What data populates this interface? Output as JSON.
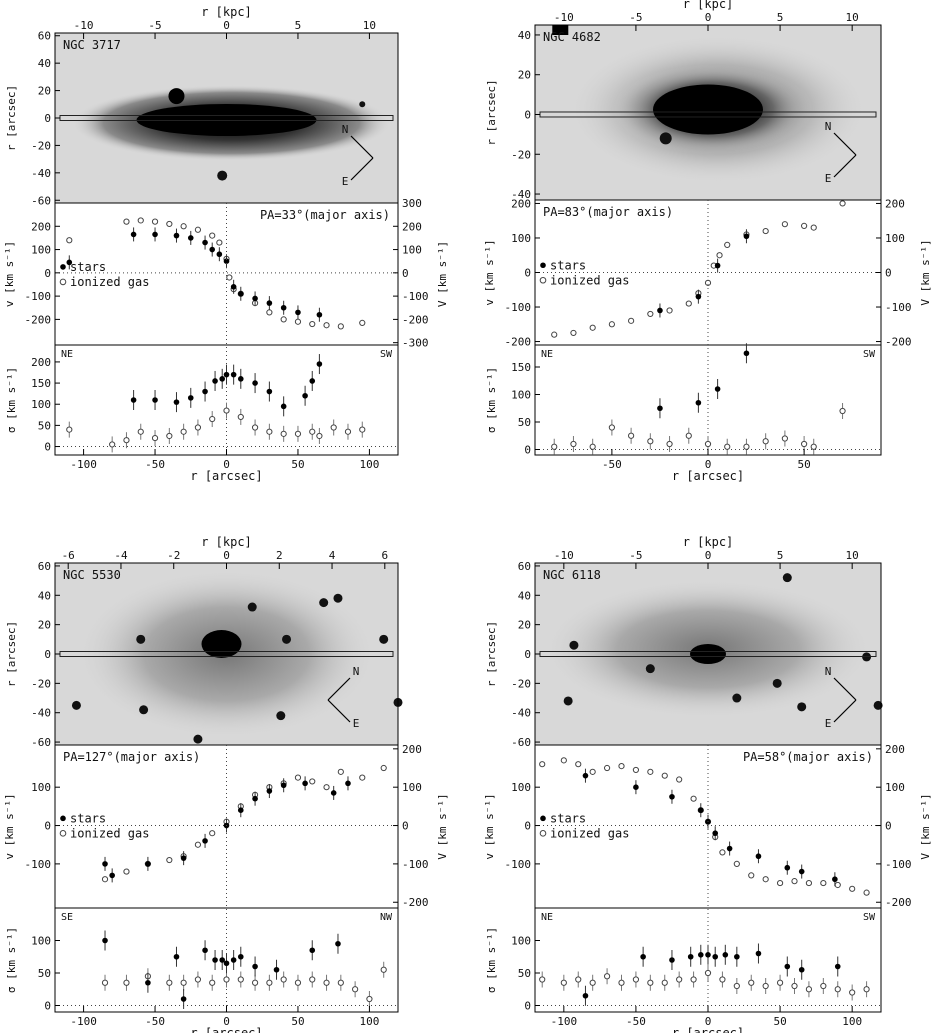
{
  "labels": {
    "r_kpc": "r [kpc]",
    "r_arcsec_x": "r [arcsec]",
    "r_arcsec_y": "r [arcsec]",
    "v_label": "v [km s⁻¹]",
    "V_label": "V [km s⁻¹]",
    "sigma_label": "σ [km s⁻¹]",
    "stars": "stars",
    "gas": "ionized gas"
  },
  "colors": {
    "stars": "#000000",
    "gas": "#444444",
    "image_bg": "#d8d8d8"
  },
  "chart_data": [
    {
      "type": "scatter",
      "galaxy": "NGC 3717",
      "pa": "PA=33°(major axis)",
      "side_left": "NE",
      "side_right": "SW",
      "xlim": [
        -120,
        120
      ],
      "kpc_lim": [
        -12,
        12
      ],
      "kpc_ticks": [
        -10,
        -5,
        0,
        5,
        10
      ],
      "img_ylim": [
        -62,
        62
      ],
      "img_yticks": [
        -60,
        -40,
        -20,
        0,
        20,
        40,
        60
      ],
      "vlim": [
        -310,
        300
      ],
      "vticks": [
        -200,
        -100,
        0,
        100,
        200
      ],
      "Vticks": [
        -300,
        -200,
        -100,
        0,
        100,
        200,
        300
      ],
      "slim": [
        -20,
        240
      ],
      "sticks": [
        0,
        50,
        100,
        150,
        200
      ],
      "xticks": [
        -100,
        -50,
        0,
        50,
        100
      ],
      "compass": {
        "N": [
          -45,
          120
        ],
        "E": [
          45,
          140
        ]
      },
      "velocity_stars": [
        [
          -110,
          45
        ],
        [
          -65,
          165
        ],
        [
          -50,
          165
        ],
        [
          -35,
          160
        ],
        [
          -25,
          150
        ],
        [
          -15,
          130
        ],
        [
          -10,
          100
        ],
        [
          -5,
          80
        ],
        [
          0,
          50
        ],
        [
          5,
          -60
        ],
        [
          10,
          -90
        ],
        [
          20,
          -110
        ],
        [
          30,
          -130
        ],
        [
          40,
          -150
        ],
        [
          50,
          -170
        ],
        [
          65,
          -180
        ]
      ],
      "velocity_gas": [
        [
          -110,
          140
        ],
        [
          -70,
          220
        ],
        [
          -60,
          225
        ],
        [
          -50,
          220
        ],
        [
          -40,
          210
        ],
        [
          -30,
          200
        ],
        [
          -20,
          185
        ],
        [
          -10,
          160
        ],
        [
          -5,
          130
        ],
        [
          0,
          60
        ],
        [
          2,
          -20
        ],
        [
          5,
          -70
        ],
        [
          10,
          -90
        ],
        [
          20,
          -130
        ],
        [
          30,
          -170
        ],
        [
          40,
          -200
        ],
        [
          50,
          -210
        ],
        [
          60,
          -220
        ],
        [
          70,
          -225
        ],
        [
          80,
          -230
        ],
        [
          95,
          -215
        ]
      ],
      "dispersion_stars": [
        [
          -65,
          110
        ],
        [
          -50,
          110
        ],
        [
          -35,
          105
        ],
        [
          -25,
          115
        ],
        [
          -15,
          130
        ],
        [
          -8,
          155
        ],
        [
          -3,
          160
        ],
        [
          0,
          170
        ],
        [
          5,
          170
        ],
        [
          10,
          160
        ],
        [
          20,
          150
        ],
        [
          30,
          130
        ],
        [
          40,
          95
        ],
        [
          55,
          120
        ],
        [
          60,
          155
        ],
        [
          65,
          195
        ]
      ],
      "dispersion_gas": [
        [
          -110,
          40
        ],
        [
          -80,
          5
        ],
        [
          -70,
          15
        ],
        [
          -60,
          35
        ],
        [
          -50,
          20
        ],
        [
          -40,
          25
        ],
        [
          -30,
          35
        ],
        [
          -20,
          45
        ],
        [
          -10,
          65
        ],
        [
          0,
          85
        ],
        [
          10,
          70
        ],
        [
          20,
          45
        ],
        [
          30,
          35
        ],
        [
          40,
          30
        ],
        [
          50,
          30
        ],
        [
          60,
          35
        ],
        [
          65,
          25
        ],
        [
          75,
          45
        ],
        [
          85,
          35
        ],
        [
          95,
          40
        ]
      ]
    },
    {
      "type": "scatter",
      "galaxy": "NGC 4682",
      "pa": "PA=83°(major axis)",
      "side_left": "NE",
      "side_right": "SW",
      "xlim": [
        -90,
        90
      ],
      "kpc_lim": [
        -12,
        12
      ],
      "kpc_ticks": [
        -10,
        -5,
        0,
        5,
        10
      ],
      "img_ylim": [
        -43,
        45
      ],
      "img_yticks": [
        -40,
        -20,
        0,
        20,
        40
      ],
      "vlim": [
        -210,
        210
      ],
      "vticks": [
        -200,
        -100,
        0,
        100,
        200
      ],
      "Vticks": [
        -200,
        -100,
        0,
        100,
        200
      ],
      "slim": [
        -10,
        190
      ],
      "sticks": [
        0,
        50,
        100,
        150
      ],
      "xticks": [
        -50,
        0,
        50
      ],
      "compass": {
        "N": [
          -45,
          120
        ],
        "E": [
          45,
          140
        ]
      },
      "velocity_stars": [
        [
          -25,
          -110
        ],
        [
          -5,
          -70
        ],
        [
          5,
          20
        ],
        [
          20,
          105
        ]
      ],
      "velocity_gas": [
        [
          -80,
          -180
        ],
        [
          -70,
          -175
        ],
        [
          -60,
          -160
        ],
        [
          -50,
          -150
        ],
        [
          -40,
          -140
        ],
        [
          -30,
          -120
        ],
        [
          -20,
          -110
        ],
        [
          -10,
          -90
        ],
        [
          -5,
          -60
        ],
        [
          0,
          -30
        ],
        [
          3,
          20
        ],
        [
          6,
          50
        ],
        [
          10,
          80
        ],
        [
          20,
          110
        ],
        [
          30,
          120
        ],
        [
          40,
          140
        ],
        [
          50,
          135
        ],
        [
          55,
          130
        ],
        [
          70,
          200
        ]
      ],
      "dispersion_stars": [
        [
          -25,
          75
        ],
        [
          -5,
          85
        ],
        [
          5,
          110
        ],
        [
          20,
          175
        ]
      ],
      "dispersion_gas": [
        [
          -80,
          5
        ],
        [
          -70,
          10
        ],
        [
          -60,
          5
        ],
        [
          -50,
          40
        ],
        [
          -40,
          25
        ],
        [
          -30,
          15
        ],
        [
          -20,
          10
        ],
        [
          -10,
          25
        ],
        [
          0,
          10
        ],
        [
          10,
          5
        ],
        [
          20,
          5
        ],
        [
          30,
          15
        ],
        [
          40,
          20
        ],
        [
          50,
          10
        ],
        [
          55,
          5
        ],
        [
          70,
          70
        ]
      ]
    },
    {
      "type": "scatter",
      "galaxy": "NGC 5530",
      "pa": "PA=127°(major axis)",
      "side_left": "SE",
      "side_right": "NW",
      "xlim": [
        -120,
        120
      ],
      "kpc_lim": [
        -6.5,
        6.5
      ],
      "kpc_ticks": [
        -6,
        -4,
        -2,
        0,
        2,
        4,
        6
      ],
      "img_ylim": [
        -62,
        62
      ],
      "img_yticks": [
        -60,
        -40,
        -20,
        0,
        20,
        40,
        60
      ],
      "vlim": [
        -215,
        210
      ],
      "vticks": [
        -100,
        0,
        100
      ],
      "Vticks": [
        -200,
        -100,
        0,
        100,
        200
      ],
      "slim": [
        -10,
        150
      ],
      "sticks": [
        0,
        50,
        100
      ],
      "xticks": [
        -100,
        -50,
        0,
        50,
        100
      ],
      "compass": {
        "N": [
          45,
          120
        ],
        "E": [
          -45,
          140
        ]
      },
      "velocity_stars": [
        [
          -85,
          -100
        ],
        [
          -80,
          -130
        ],
        [
          -55,
          -100
        ],
        [
          -30,
          -85
        ],
        [
          -15,
          -40
        ],
        [
          0,
          0
        ],
        [
          10,
          40
        ],
        [
          20,
          70
        ],
        [
          30,
          90
        ],
        [
          40,
          105
        ],
        [
          55,
          110
        ],
        [
          75,
          85
        ],
        [
          85,
          110
        ]
      ],
      "velocity_gas": [
        [
          -85,
          -140
        ],
        [
          -70,
          -120
        ],
        [
          -55,
          -100
        ],
        [
          -40,
          -90
        ],
        [
          -30,
          -80
        ],
        [
          -20,
          -50
        ],
        [
          -10,
          -20
        ],
        [
          0,
          10
        ],
        [
          10,
          50
        ],
        [
          20,
          80
        ],
        [
          30,
          100
        ],
        [
          40,
          110
        ],
        [
          50,
          125
        ],
        [
          60,
          115
        ],
        [
          70,
          100
        ],
        [
          80,
          140
        ],
        [
          95,
          125
        ],
        [
          110,
          150
        ]
      ],
      "dispersion_stars": [
        [
          -85,
          100
        ],
        [
          -55,
          35
        ],
        [
          -35,
          75
        ],
        [
          -30,
          10
        ],
        [
          -15,
          85
        ],
        [
          -8,
          70
        ],
        [
          -3,
          70
        ],
        [
          0,
          65
        ],
        [
          5,
          70
        ],
        [
          10,
          75
        ],
        [
          20,
          60
        ],
        [
          35,
          55
        ],
        [
          60,
          85
        ],
        [
          78,
          95
        ]
      ],
      "dispersion_gas": [
        [
          -85,
          35
        ],
        [
          -70,
          35
        ],
        [
          -55,
          45
        ],
        [
          -40,
          35
        ],
        [
          -30,
          35
        ],
        [
          -20,
          40
        ],
        [
          -10,
          35
        ],
        [
          0,
          40
        ],
        [
          10,
          40
        ],
        [
          20,
          35
        ],
        [
          30,
          35
        ],
        [
          40,
          40
        ],
        [
          50,
          35
        ],
        [
          60,
          40
        ],
        [
          70,
          35
        ],
        [
          80,
          35
        ],
        [
          90,
          25
        ],
        [
          100,
          10
        ],
        [
          110,
          55
        ]
      ]
    },
    {
      "type": "scatter",
      "galaxy": "NGC 6118",
      "pa": "PA=58°(major axis)",
      "side_left": "NE",
      "side_right": "SW",
      "xlim": [
        -120,
        120
      ],
      "kpc_lim": [
        -12,
        12
      ],
      "kpc_ticks": [
        -10,
        -5,
        0,
        5,
        10
      ],
      "img_ylim": [
        -62,
        62
      ],
      "img_yticks": [
        -60,
        -40,
        -20,
        0,
        20,
        40,
        60
      ],
      "vlim": [
        -215,
        210
      ],
      "vticks": [
        -100,
        0,
        100
      ],
      "Vticks": [
        -200,
        -100,
        0,
        100,
        200
      ],
      "slim": [
        -10,
        150
      ],
      "sticks": [
        0,
        50,
        100
      ],
      "xticks": [
        -100,
        -50,
        0,
        50,
        100
      ],
      "compass": {
        "N": [
          -45,
          120
        ],
        "E": [
          45,
          140
        ]
      },
      "velocity_stars": [
        [
          -85,
          130
        ],
        [
          -50,
          100
        ],
        [
          -25,
          75
        ],
        [
          -5,
          40
        ],
        [
          0,
          10
        ],
        [
          5,
          -20
        ],
        [
          15,
          -60
        ],
        [
          35,
          -80
        ],
        [
          55,
          -110
        ],
        [
          65,
          -120
        ],
        [
          88,
          -140
        ]
      ],
      "velocity_gas": [
        [
          -115,
          160
        ],
        [
          -100,
          170
        ],
        [
          -90,
          160
        ],
        [
          -80,
          140
        ],
        [
          -70,
          150
        ],
        [
          -60,
          155
        ],
        [
          -50,
          145
        ],
        [
          -40,
          140
        ],
        [
          -30,
          130
        ],
        [
          -20,
          120
        ],
        [
          -10,
          70
        ],
        [
          -5,
          40
        ],
        [
          0,
          10
        ],
        [
          5,
          -30
        ],
        [
          10,
          -70
        ],
        [
          20,
          -100
        ],
        [
          30,
          -130
        ],
        [
          40,
          -140
        ],
        [
          50,
          -150
        ],
        [
          60,
          -145
        ],
        [
          70,
          -150
        ],
        [
          80,
          -150
        ],
        [
          90,
          -155
        ],
        [
          100,
          -165
        ],
        [
          110,
          -175
        ]
      ],
      "dispersion_stars": [
        [
          -85,
          15
        ],
        [
          -45,
          75
        ],
        [
          -25,
          70
        ],
        [
          -12,
          75
        ],
        [
          -5,
          78
        ],
        [
          0,
          78
        ],
        [
          5,
          75
        ],
        [
          12,
          78
        ],
        [
          20,
          75
        ],
        [
          35,
          80
        ],
        [
          55,
          60
        ],
        [
          65,
          55
        ],
        [
          90,
          60
        ]
      ],
      "dispersion_gas": [
        [
          -115,
          40
        ],
        [
          -100,
          35
        ],
        [
          -90,
          40
        ],
        [
          -80,
          35
        ],
        [
          -70,
          45
        ],
        [
          -60,
          35
        ],
        [
          -50,
          40
        ],
        [
          -40,
          35
        ],
        [
          -30,
          35
        ],
        [
          -20,
          40
        ],
        [
          -10,
          40
        ],
        [
          0,
          50
        ],
        [
          10,
          40
        ],
        [
          20,
          30
        ],
        [
          30,
          35
        ],
        [
          40,
          30
        ],
        [
          50,
          35
        ],
        [
          60,
          30
        ],
        [
          70,
          25
        ],
        [
          80,
          30
        ],
        [
          90,
          25
        ],
        [
          100,
          20
        ],
        [
          110,
          25
        ]
      ]
    }
  ]
}
